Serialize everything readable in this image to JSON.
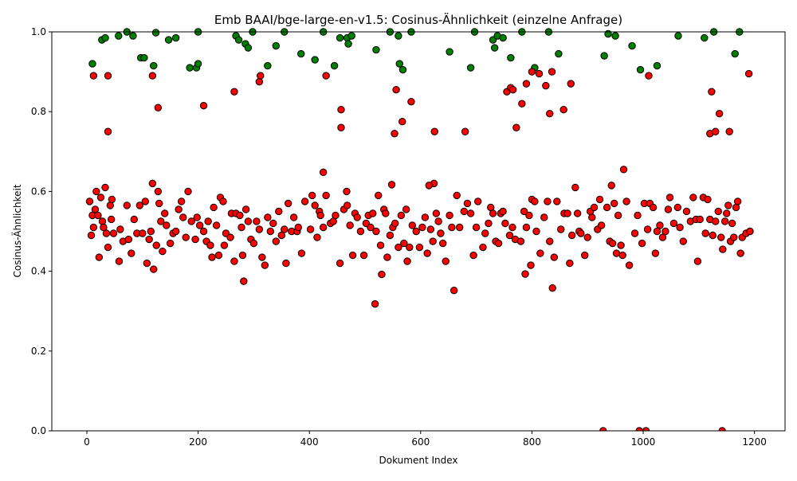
{
  "chart_data": {
    "type": "scatter",
    "title": "Emb BAAI/bge-large-en-v1.5: Cosinus-Ähnlichkeit (einzelne Anfrage)",
    "xlabel": "Dokument Index",
    "ylabel": "Cosinus-Ähnlichkeit",
    "xlim": [
      -63,
      1255
    ],
    "ylim": [
      0,
      1
    ],
    "xticks": [
      0,
      200,
      400,
      600,
      800,
      1000,
      1200
    ],
    "yticks": [
      {
        "value": 0,
        "label": "0.0"
      },
      0.2,
      0.4,
      0.6,
      0.8,
      {
        "value": 1,
        "label": "1.0"
      }
    ],
    "series": [
      {
        "color": "#008000",
        "x": [
          10,
          27,
          33,
          57,
          72,
          83,
          97,
          103,
          120,
          124,
          147,
          160,
          185,
          197,
          200,
          200,
          268,
          273,
          285,
          290,
          298,
          325,
          340,
          355,
          385,
          410,
          425,
          445,
          455,
          468,
          470,
          476,
          520,
          545,
          560,
          562,
          568,
          583,
          652,
          690,
          697,
          730,
          733,
          738,
          748,
          762,
          782,
          805,
          830,
          848,
          930,
          937,
          950,
          980,
          995,
          1025,
          1063,
          1110,
          1127,
          1165,
          1173
        ],
        "values": [
          0.92,
          0.98,
          0.985,
          0.99,
          1.0,
          0.99,
          0.935,
          0.935,
          0.915,
          0.998,
          0.98,
          0.985,
          0.91,
          0.91,
          0.92,
          1.0,
          0.99,
          0.98,
          0.97,
          0.96,
          1.0,
          0.915,
          0.965,
          1.0,
          0.945,
          0.93,
          1.0,
          0.915,
          0.985,
          0.985,
          0.97,
          0.99,
          0.955,
          1.0,
          0.99,
          0.92,
          0.905,
          1.0,
          0.95,
          0.91,
          1.0,
          0.98,
          0.96,
          0.99,
          0.985,
          0.935,
          1.0,
          0.91,
          1.0,
          0.945,
          0.94,
          0.995,
          0.99,
          0.965,
          0.905,
          0.915,
          0.99,
          0.985,
          1.0,
          0.945,
          1.0
        ]
      },
      {
        "color": "#ff0000",
        "x": [
          5,
          8,
          10,
          12,
          15,
          17,
          20,
          22,
          25,
          28,
          30,
          33,
          35,
          38,
          42,
          44,
          45,
          48,
          58,
          60,
          65,
          72,
          75,
          80,
          85,
          90,
          95,
          100,
          105,
          108,
          112,
          115,
          120,
          125,
          128,
          130,
          133,
          136,
          140,
          143,
          150,
          155,
          160,
          165,
          170,
          173,
          178,
          182,
          188,
          195,
          198,
          203,
          210,
          215,
          218,
          222,
          225,
          228,
          233,
          237,
          240,
          245,
          247,
          250,
          258,
          260,
          265,
          268,
          275,
          278,
          280,
          286,
          290,
          295,
          300,
          305,
          310,
          315,
          320,
          325,
          330,
          335,
          340,
          345,
          350,
          355,
          358,
          362,
          368,
          372,
          378,
          380,
          386,
          392,
          402,
          405,
          410,
          414,
          418,
          420,
          425,
          430,
          438,
          443,
          447,
          455,
          462,
          468,
          473,
          478,
          482,
          486,
          492,
          498,
          502,
          506,
          510,
          514,
          520,
          524,
          528,
          534,
          537,
          540,
          545,
          550,
          554,
          560,
          565,
          570,
          574,
          576,
          580,
          585,
          592,
          598,
          603,
          608,
          612,
          618,
          622,
          628,
          632,
          636,
          640,
          645,
          652,
          656,
          665,
          670,
          678,
          684,
          690,
          695,
          700,
          703,
          712,
          716,
          722,
          726,
          730,
          735,
          740,
          744,
          748,
          752,
          760,
          765,
          770,
          780,
          786,
          790,
          795,
          798,
          800,
          805,
          808,
          815,
          822,
          828,
          832,
          840,
          845,
          852,
          858,
          864,
          868,
          872,
          878,
          882,
          885,
          888,
          895,
          900,
          905,
          908,
          912,
          918,
          922,
          925,
          935,
          940,
          945,
          948,
          952,
          955,
          960,
          963,
          970,
          985,
          990,
          998,
          1002,
          1008,
          1012,
          1018,
          1022,
          1025,
          1030,
          1035,
          1040,
          1045,
          1048,
          1055,
          1062,
          1066,
          1072,
          1078,
          1085,
          1090,
          1095,
          1098,
          1102,
          1108,
          1112,
          1116,
          1120,
          1125,
          1130,
          1135,
          1140,
          1143,
          1147,
          1150,
          1153,
          1157,
          1160,
          1163,
          1167,
          1170,
          1175,
          1178,
          1185,
          1192,
          12,
          38,
          38,
          118,
          128,
          210,
          265,
          310,
          312,
          430,
          457,
          457,
          553,
          556,
          567,
          583,
          625,
          680,
          755,
          762,
          766,
          772,
          782,
          790,
          800,
          813,
          825,
          832,
          836,
          857,
          870,
          1010,
          1120,
          1123,
          1130,
          1137,
          1155,
          1190,
          282,
          518,
          530,
          660,
          788,
          837,
          975,
          425,
          467,
          548,
          118,
          624,
          615,
          943,
          965,
          928,
          993,
          1005,
          1142
        ],
        "values": [
          0.575,
          0.49,
          0.54,
          0.51,
          0.555,
          0.6,
          0.54,
          0.435,
          0.585,
          0.525,
          0.51,
          0.61,
          0.495,
          0.46,
          0.565,
          0.53,
          0.58,
          0.495,
          0.425,
          0.505,
          0.475,
          0.565,
          0.48,
          0.445,
          0.53,
          0.495,
          0.565,
          0.495,
          0.575,
          0.42,
          0.48,
          0.5,
          0.405,
          0.465,
          0.6,
          0.57,
          0.525,
          0.45,
          0.545,
          0.515,
          0.47,
          0.495,
          0.5,
          0.555,
          0.575,
          0.535,
          0.485,
          0.6,
          0.525,
          0.48,
          0.535,
          0.515,
          0.5,
          0.475,
          0.525,
          0.465,
          0.435,
          0.56,
          0.515,
          0.44,
          0.585,
          0.575,
          0.465,
          0.495,
          0.485,
          0.545,
          0.425,
          0.545,
          0.54,
          0.51,
          0.44,
          0.555,
          0.525,
          0.48,
          0.47,
          0.525,
          0.505,
          0.435,
          0.415,
          0.535,
          0.5,
          0.52,
          0.475,
          0.55,
          0.49,
          0.505,
          0.42,
          0.57,
          0.5,
          0.535,
          0.5,
          0.51,
          0.445,
          0.575,
          0.505,
          0.59,
          0.565,
          0.485,
          0.55,
          0.54,
          0.51,
          0.59,
          0.52,
          0.525,
          0.54,
          0.42,
          0.555,
          0.565,
          0.515,
          0.44,
          0.545,
          0.535,
          0.5,
          0.44,
          0.52,
          0.54,
          0.51,
          0.545,
          0.5,
          0.59,
          0.465,
          0.555,
          0.545,
          0.435,
          0.49,
          0.51,
          0.52,
          0.46,
          0.54,
          0.47,
          0.555,
          0.425,
          0.46,
          0.515,
          0.5,
          0.46,
          0.51,
          0.535,
          0.445,
          0.505,
          0.475,
          0.545,
          0.525,
          0.495,
          0.47,
          0.425,
          0.54,
          0.51,
          0.59,
          0.51,
          0.55,
          0.57,
          0.545,
          0.44,
          0.51,
          0.575,
          0.46,
          0.495,
          0.52,
          0.56,
          0.545,
          0.475,
          0.47,
          0.545,
          0.55,
          0.52,
          0.49,
          0.51,
          0.48,
          0.475,
          0.55,
          0.51,
          0.54,
          0.415,
          0.58,
          0.575,
          0.5,
          0.445,
          0.535,
          0.575,
          0.475,
          0.435,
          0.575,
          0.505,
          0.545,
          0.545,
          0.42,
          0.49,
          0.61,
          0.545,
          0.5,
          0.495,
          0.44,
          0.485,
          0.55,
          0.535,
          0.56,
          0.505,
          0.58,
          0.515,
          0.56,
          0.475,
          0.47,
          0.57,
          0.445,
          0.54,
          0.465,
          0.44,
          0.575,
          0.495,
          0.54,
          0.47,
          0.57,
          0.505,
          0.57,
          0.56,
          0.445,
          0.5,
          0.515,
          0.485,
          0.5,
          0.555,
          0.585,
          0.52,
          0.56,
          0.51,
          0.475,
          0.55,
          0.525,
          0.585,
          0.53,
          0.425,
          0.53,
          0.585,
          0.495,
          0.58,
          0.53,
          0.49,
          0.525,
          0.55,
          0.485,
          0.455,
          0.525,
          0.545,
          0.565,
          0.475,
          0.52,
          0.485,
          0.56,
          0.575,
          0.445,
          0.485,
          0.495,
          0.5,
          0.89,
          0.89,
          0.75,
          0.89,
          0.81,
          0.815,
          0.85,
          0.875,
          0.89,
          0.89,
          0.805,
          0.76,
          0.745,
          0.855,
          0.775,
          0.825,
          0.75,
          0.75,
          0.85,
          0.86,
          0.855,
          0.76,
          0.82,
          0.87,
          0.9,
          0.895,
          0.865,
          0.795,
          0.9,
          0.805,
          0.87,
          0.89,
          0.745,
          0.85,
          0.75,
          0.795,
          0.75,
          0.895,
          0.375,
          0.318,
          0.392,
          0.352,
          0.393,
          0.358,
          0.415,
          0.648,
          0.6,
          0.617,
          0.62,
          0.62,
          0.615,
          0.615,
          0.655,
          0,
          0,
          0,
          0
        ]
      }
    ]
  }
}
